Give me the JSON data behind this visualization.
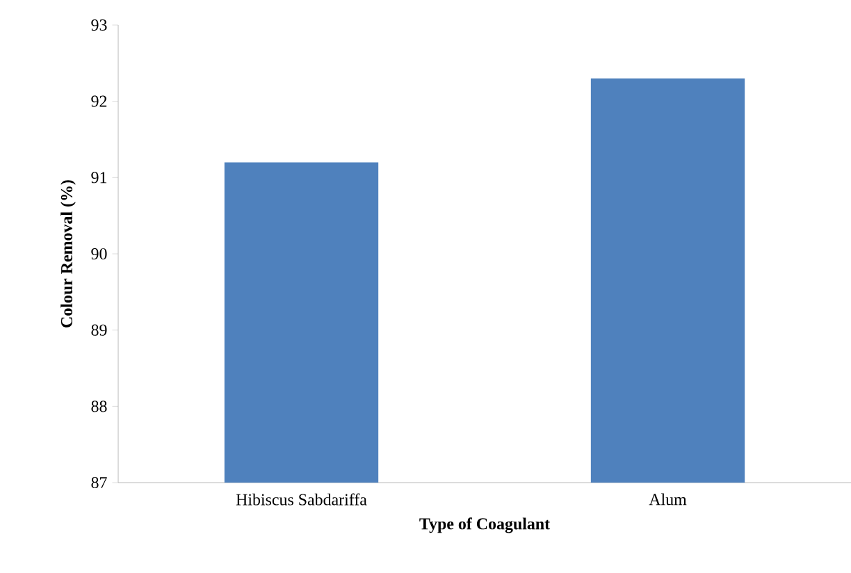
{
  "chart_data": {
    "type": "bar",
    "xlabel": "Type  of  Coagulant",
    "ylabel": "Colour Removal  (%)",
    "categories": [
      "Hibiscus Sabdariffa",
      "Alum"
    ],
    "values": [
      91.2,
      92.3
    ],
    "color": "#4f81bd",
    "ylim": [
      87,
      93
    ],
    "yticks": [
      87,
      88,
      89,
      90,
      91,
      92,
      93
    ],
    "grid": false
  }
}
